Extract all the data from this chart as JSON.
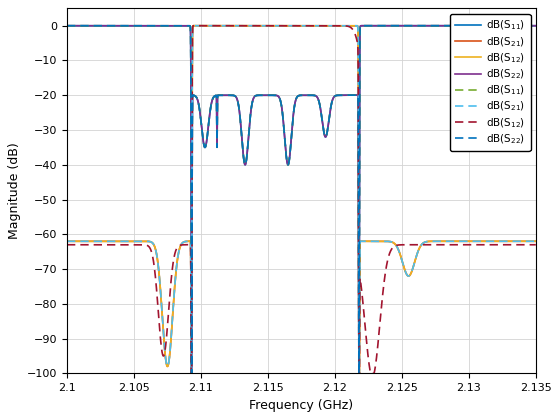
{
  "xlabel": "Frequency (GHz)",
  "ylabel": "Magnitude (dB)",
  "xlim": [
    2.1,
    2.135
  ],
  "ylim": [
    -100,
    5
  ],
  "yticks": [
    0,
    -10,
    -20,
    -30,
    -40,
    -50,
    -60,
    -70,
    -80,
    -90,
    -100
  ],
  "xticks": [
    2.1,
    2.105,
    2.11,
    2.115,
    2.12,
    2.125,
    2.13,
    2.135
  ],
  "solid_colors": {
    "S11": "#0072BD",
    "S21": "#D95319",
    "S12": "#EDB120",
    "S22": "#7E2F8E"
  },
  "dashed_colors": {
    "S11": "#77AC30",
    "S21": "#4DBEEE",
    "S12": "#A2142F",
    "S22": "#0072BD"
  },
  "background_color": "#FFFFFF",
  "grid_color": "#D3D3D3",
  "f_passband_low": 2.1093,
  "f_passband_high": 2.1218,
  "f_start": 2.1,
  "f_end": 2.135,
  "npts": 8000
}
